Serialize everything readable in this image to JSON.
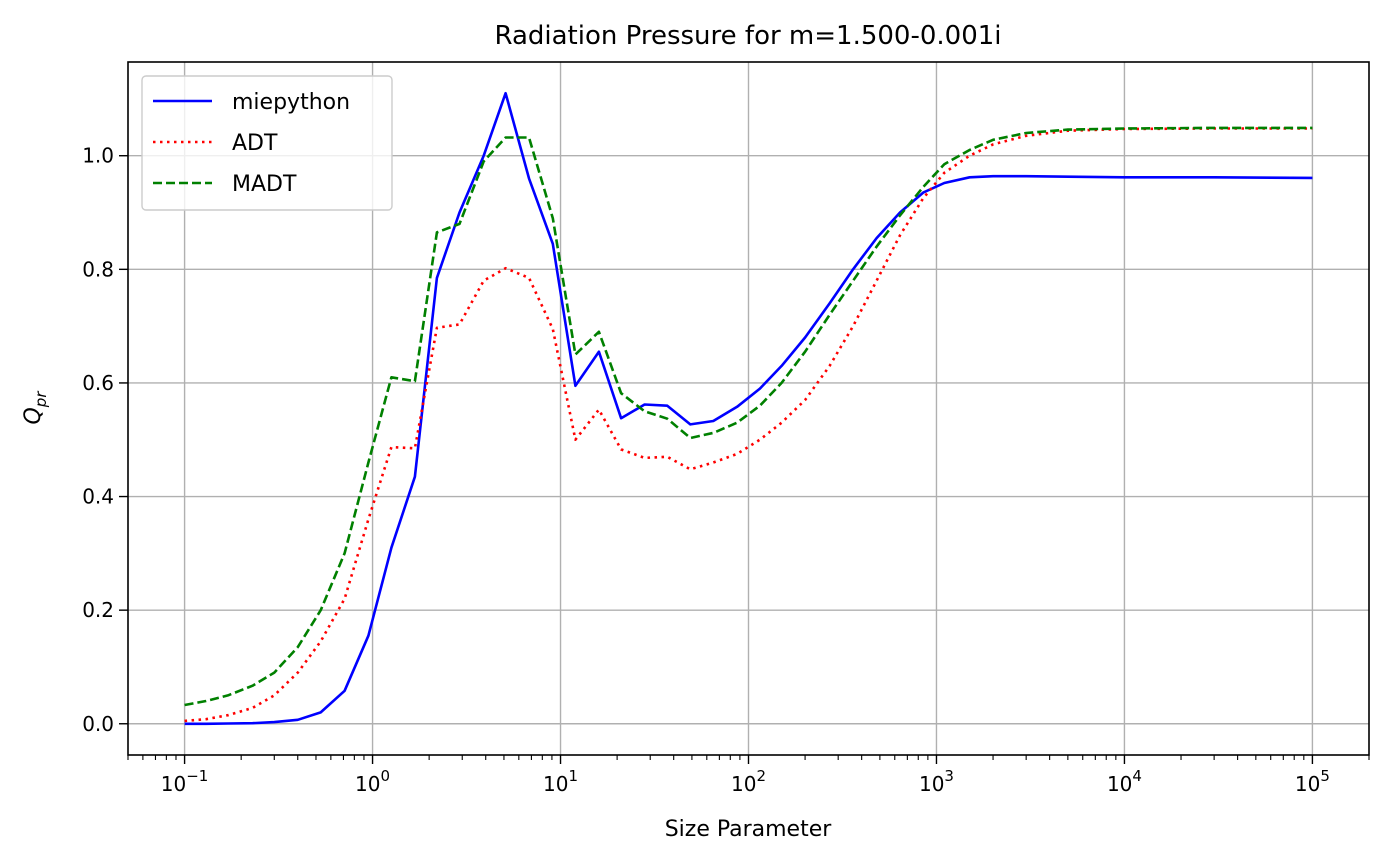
{
  "chart_data": {
    "type": "line",
    "title": "Radiation Pressure for m=1.500-0.001i",
    "xlabel": "Size Parameter",
    "ylabel_main": "Q",
    "ylabel_sub": "pr",
    "xscale": "log",
    "xlim": [
      0.05,
      200000.0
    ],
    "ylim": [
      -0.055,
      1.165
    ],
    "grid": true,
    "legend_placement": "top-left",
    "x_ticks": [
      {
        "base": "10",
        "exp": "−1",
        "value": 0.1
      },
      {
        "base": "10",
        "exp": "0",
        "value": 1
      },
      {
        "base": "10",
        "exp": "1",
        "value": 10
      },
      {
        "base": "10",
        "exp": "2",
        "value": 100
      },
      {
        "base": "10",
        "exp": "3",
        "value": 1000
      },
      {
        "base": "10",
        "exp": "4",
        "value": 10000
      },
      {
        "base": "10",
        "exp": "5",
        "value": 100000
      }
    ],
    "y_ticks": [
      {
        "label": "0.0",
        "value": 0.0
      },
      {
        "label": "0.2",
        "value": 0.2
      },
      {
        "label": "0.4",
        "value": 0.4
      },
      {
        "label": "0.6",
        "value": 0.6
      },
      {
        "label": "0.8",
        "value": 0.8
      },
      {
        "label": "1.0",
        "value": 1.0
      }
    ],
    "series": [
      {
        "name": "miepython",
        "color": "#0000ff",
        "style": "solid",
        "points": [
          [
            0.1,
            0.0
          ],
          [
            0.13,
            0.0
          ],
          [
            0.17,
            0.0005
          ],
          [
            0.23,
            0.001
          ],
          [
            0.3,
            0.003
          ],
          [
            0.4,
            0.007
          ],
          [
            0.53,
            0.02
          ],
          [
            0.71,
            0.058
          ],
          [
            0.95,
            0.155
          ],
          [
            1.26,
            0.31
          ],
          [
            1.68,
            0.435
          ],
          [
            2.2,
            0.785
          ],
          [
            2.9,
            0.9
          ],
          [
            3.9,
            1.0
          ],
          [
            5.1,
            1.11
          ],
          [
            6.8,
            0.96
          ],
          [
            9.1,
            0.845
          ],
          [
            12.0,
            0.595
          ],
          [
            16.0,
            0.655
          ],
          [
            21.0,
            0.538
          ],
          [
            28.0,
            0.562
          ],
          [
            37.0,
            0.56
          ],
          [
            49.0,
            0.527
          ],
          [
            65.0,
            0.533
          ],
          [
            87.0,
            0.558
          ],
          [
            115.0,
            0.59
          ],
          [
            150.0,
            0.63
          ],
          [
            200.0,
            0.68
          ],
          [
            270.0,
            0.74
          ],
          [
            360.0,
            0.8
          ],
          [
            480.0,
            0.855
          ],
          [
            640.0,
            0.9
          ],
          [
            850.0,
            0.935
          ],
          [
            1100.0,
            0.952
          ],
          [
            1500.0,
            0.962
          ],
          [
            2000.0,
            0.964
          ],
          [
            3000.0,
            0.964
          ],
          [
            5000.0,
            0.963
          ],
          [
            10000.0,
            0.962
          ],
          [
            30000.0,
            0.962
          ],
          [
            100000.0,
            0.961
          ]
        ]
      },
      {
        "name": "ADT",
        "color": "#ff0000",
        "style": "dotted",
        "points": [
          [
            0.1,
            0.005
          ],
          [
            0.13,
            0.008
          ],
          [
            0.17,
            0.015
          ],
          [
            0.23,
            0.028
          ],
          [
            0.3,
            0.05
          ],
          [
            0.4,
            0.09
          ],
          [
            0.53,
            0.145
          ],
          [
            0.71,
            0.22
          ],
          [
            0.95,
            0.36
          ],
          [
            1.26,
            0.487
          ],
          [
            1.68,
            0.485
          ],
          [
            2.2,
            0.697
          ],
          [
            2.9,
            0.703
          ],
          [
            3.9,
            0.78
          ],
          [
            5.1,
            0.802
          ],
          [
            6.8,
            0.785
          ],
          [
            9.1,
            0.695
          ],
          [
            12.0,
            0.5
          ],
          [
            16.0,
            0.553
          ],
          [
            21.0,
            0.483
          ],
          [
            28.0,
            0.468
          ],
          [
            37.0,
            0.47
          ],
          [
            49.0,
            0.448
          ],
          [
            65.0,
            0.46
          ],
          [
            87.0,
            0.475
          ],
          [
            115.0,
            0.5
          ],
          [
            150.0,
            0.53
          ],
          [
            200.0,
            0.57
          ],
          [
            270.0,
            0.63
          ],
          [
            360.0,
            0.7
          ],
          [
            480.0,
            0.78
          ],
          [
            640.0,
            0.86
          ],
          [
            850.0,
            0.925
          ],
          [
            1100.0,
            0.97
          ],
          [
            1500.0,
            1.0
          ],
          [
            2000.0,
            1.02
          ],
          [
            3000.0,
            1.035
          ],
          [
            5000.0,
            1.044
          ],
          [
            10000.0,
            1.047
          ],
          [
            30000.0,
            1.048
          ],
          [
            100000.0,
            1.048
          ]
        ]
      },
      {
        "name": "MADT",
        "color": "#008000",
        "style": "dashed",
        "points": [
          [
            0.1,
            0.033
          ],
          [
            0.13,
            0.04
          ],
          [
            0.17,
            0.05
          ],
          [
            0.23,
            0.067
          ],
          [
            0.3,
            0.09
          ],
          [
            0.4,
            0.135
          ],
          [
            0.53,
            0.2
          ],
          [
            0.71,
            0.3
          ],
          [
            0.95,
            0.46
          ],
          [
            1.26,
            0.61
          ],
          [
            1.68,
            0.603
          ],
          [
            2.2,
            0.865
          ],
          [
            2.9,
            0.88
          ],
          [
            3.9,
            0.99
          ],
          [
            5.1,
            1.032
          ],
          [
            6.8,
            1.032
          ],
          [
            9.1,
            0.89
          ],
          [
            12.0,
            0.65
          ],
          [
            16.0,
            0.69
          ],
          [
            21.0,
            0.582
          ],
          [
            28.0,
            0.55
          ],
          [
            37.0,
            0.537
          ],
          [
            49.0,
            0.503
          ],
          [
            65.0,
            0.512
          ],
          [
            87.0,
            0.53
          ],
          [
            115.0,
            0.56
          ],
          [
            150.0,
            0.6
          ],
          [
            200.0,
            0.655
          ],
          [
            270.0,
            0.72
          ],
          [
            360.0,
            0.78
          ],
          [
            480.0,
            0.84
          ],
          [
            640.0,
            0.895
          ],
          [
            850.0,
            0.945
          ],
          [
            1100.0,
            0.985
          ],
          [
            1500.0,
            1.01
          ],
          [
            2000.0,
            1.028
          ],
          [
            3000.0,
            1.04
          ],
          [
            5000.0,
            1.046
          ],
          [
            10000.0,
            1.048
          ],
          [
            30000.0,
            1.049
          ],
          [
            100000.0,
            1.049
          ]
        ]
      }
    ]
  }
}
